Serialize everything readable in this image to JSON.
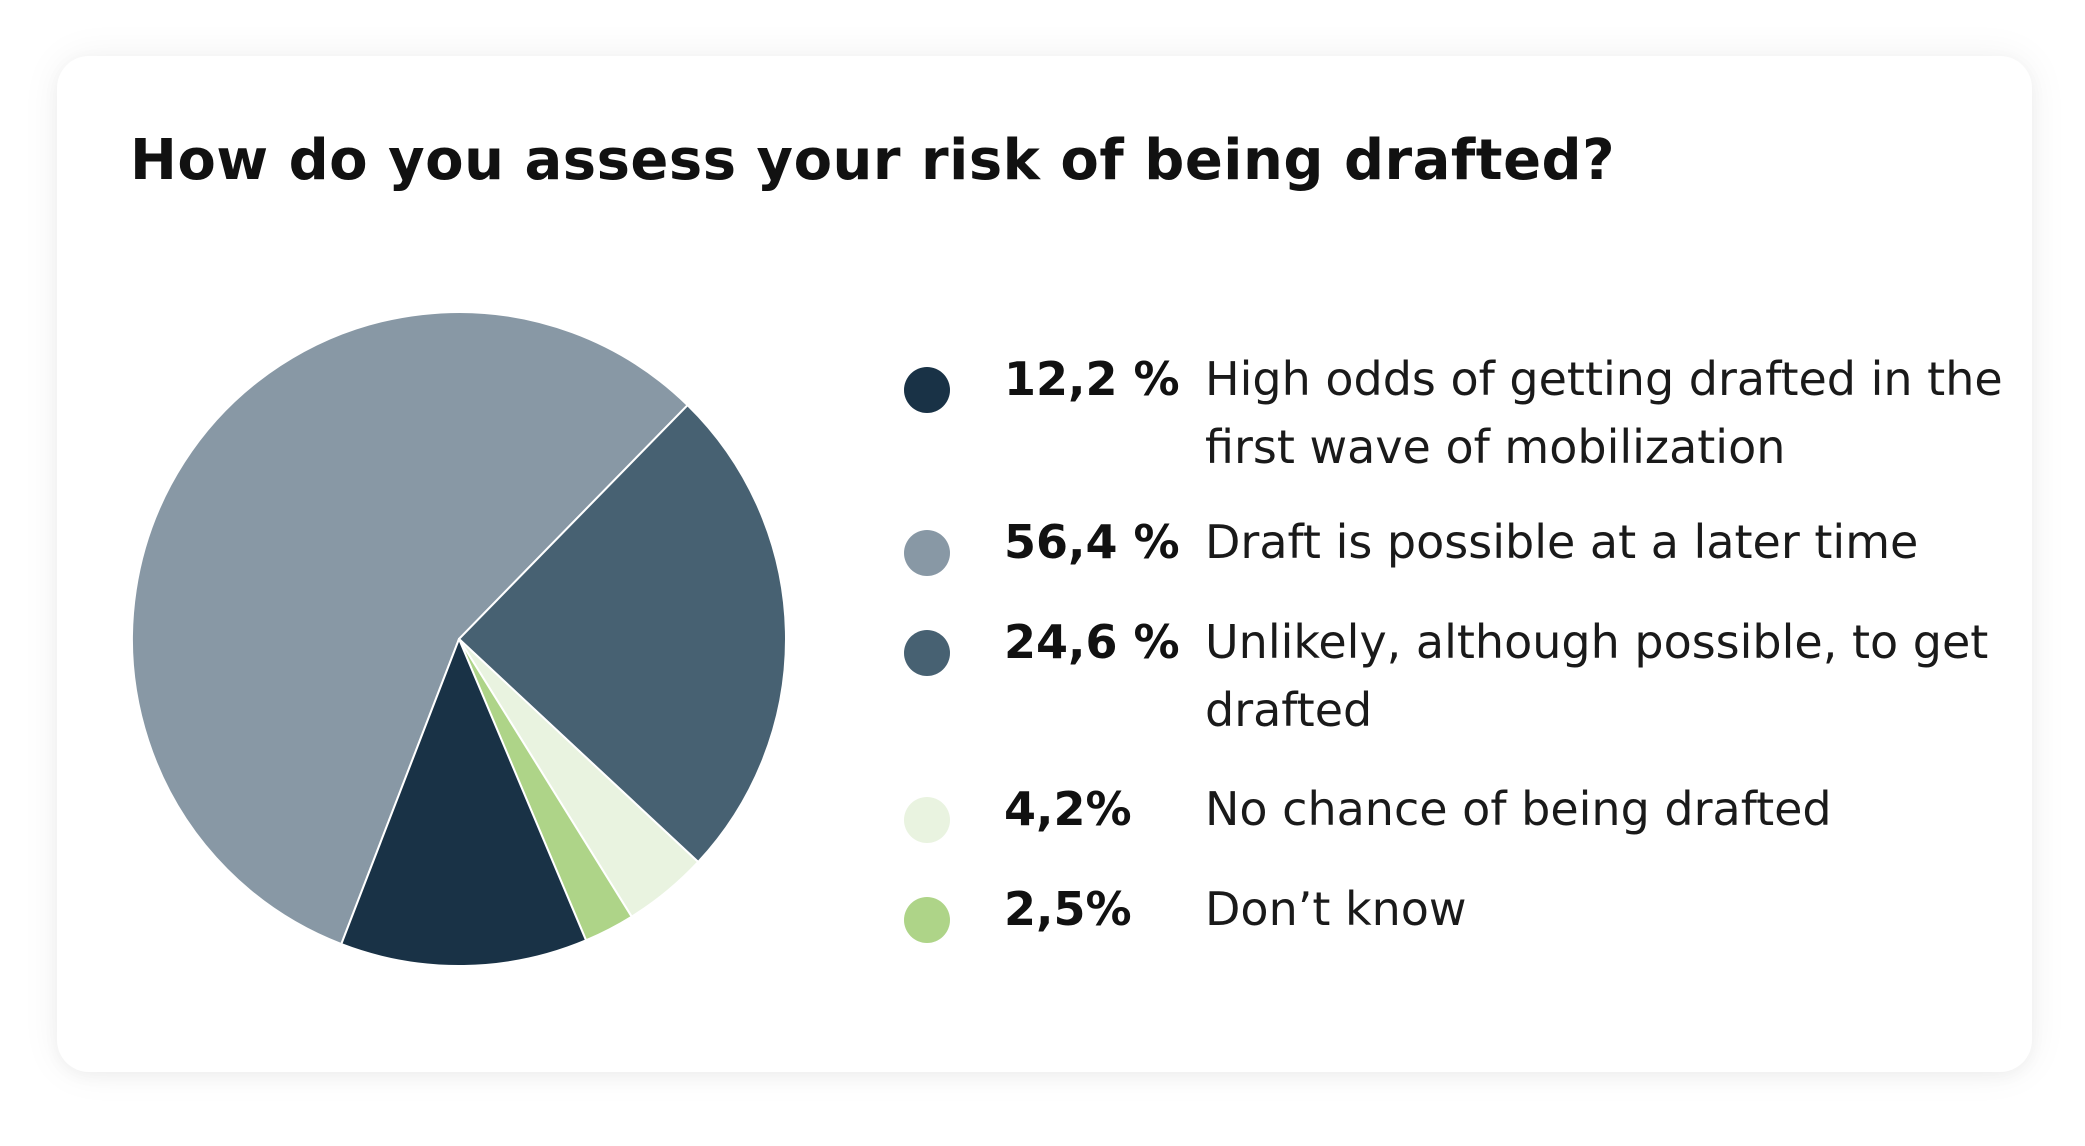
{
  "chart_data": {
    "type": "pie",
    "title": "How do you assess your risk of being drafted?",
    "slices": [
      {
        "label": "High odds of getting drafted in the first wave of mobilization",
        "value": 12.2,
        "value_label": "12,2 %",
        "color": "#193246"
      },
      {
        "label": "Draft is possible at a later time",
        "value": 56.4,
        "value_label": "56,4 %",
        "color": "#8898a5"
      },
      {
        "label": "Unlikely, although possible, to get drafted",
        "value": 24.6,
        "value_label": "24,6 %",
        "color": "#476172"
      },
      {
        "label": "No chance of being drafted",
        "value": 4.2,
        "value_label": "4,2%",
        "color": "#e9f3e0"
      },
      {
        "label": "Don’t know",
        "value": 2.5,
        "value_label": "2,5%",
        "color": "#aed488"
      }
    ],
    "legend_position": "right"
  }
}
